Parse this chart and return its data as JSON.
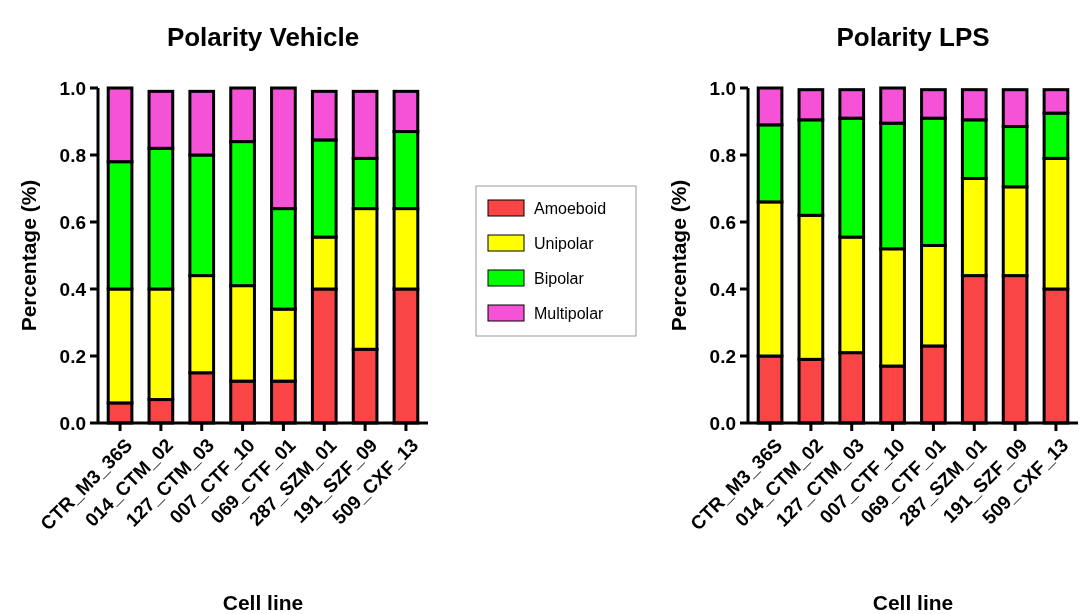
{
  "chart_data": [
    {
      "type": "bar",
      "title": "Polarity Vehicle",
      "xlabel": "Cell line",
      "ylabel": "Percentage (%)",
      "stacked": true,
      "legend": "right",
      "categories": [
        "CTR_M3_36S",
        "014_CTM_02",
        "127_CTM_03",
        "007_CTF_10",
        "069_CTF_01",
        "287_SZM_01",
        "191_SZF_09",
        "509_CXF_13"
      ],
      "ylim": [
        0,
        1
      ],
      "yticks": [
        {
          "value": 0,
          "label": "0.0"
        },
        {
          "value": 0.2,
          "label": "0.2"
        },
        {
          "value": 0.4,
          "label": "0.4"
        },
        {
          "value": 0.6,
          "label": "0.6"
        },
        {
          "value": 0.8,
          "label": "0.8"
        },
        {
          "value": 1,
          "label": "1.0"
        }
      ],
      "series": [
        {
          "name": "Amoeboid",
          "color": "#f94545",
          "values": [
            0.06,
            0.07,
            0.15,
            0.125,
            0.125,
            0.4,
            0.22,
            0.4
          ]
        },
        {
          "name": "Unipolar",
          "color": "#ffff00",
          "values": [
            0.34,
            0.33,
            0.29,
            0.285,
            0.215,
            0.155,
            0.42,
            0.24
          ]
        },
        {
          "name": "Bipolar",
          "color": "#00ff00",
          "values": [
            0.38,
            0.42,
            0.36,
            0.43,
            0.3,
            0.29,
            0.15,
            0.23
          ]
        },
        {
          "name": "Multipolar",
          "color": "#f652d8",
          "values": [
            0.22,
            0.17,
            0.19,
            0.16,
            0.36,
            0.145,
            0.2,
            0.12
          ]
        }
      ]
    },
    {
      "type": "bar",
      "title": "Polarity LPS",
      "xlabel": "Cell line",
      "ylabel": "Percentage (%)",
      "stacked": true,
      "categories": [
        "CTR_M3_36S",
        "014_CTM_02",
        "127_CTM_03",
        "007_CTF_10",
        "069_CTF_01",
        "287_SZM_01",
        "191_SZF_09",
        "509_CXF_13"
      ],
      "ylim": [
        0,
        1
      ],
      "yticks": [
        {
          "value": 0,
          "label": "0.0"
        },
        {
          "value": 0.2,
          "label": "0.2"
        },
        {
          "value": 0.4,
          "label": "0.4"
        },
        {
          "value": 0.6,
          "label": "0.6"
        },
        {
          "value": 0.8,
          "label": "0.8"
        },
        {
          "value": 1,
          "label": "1.0"
        }
      ],
      "series": [
        {
          "color": "#f94545",
          "values": [
            0.2,
            0.19,
            0.21,
            0.17,
            0.23,
            0.44,
            0.44,
            0.4
          ]
        },
        {
          "color": "#ffff00",
          "values": [
            0.46,
            0.43,
            0.345,
            0.35,
            0.3,
            0.29,
            0.265,
            0.39
          ]
        },
        {
          "color": "#00ff00",
          "values": [
            0.23,
            0.285,
            0.355,
            0.375,
            0.38,
            0.175,
            0.18,
            0.135
          ]
        },
        {
          "color": "#f652d8",
          "values": [
            0.11,
            0.09,
            0.085,
            0.105,
            0.085,
            0.09,
            0.11,
            0.07
          ]
        }
      ]
    }
  ]
}
